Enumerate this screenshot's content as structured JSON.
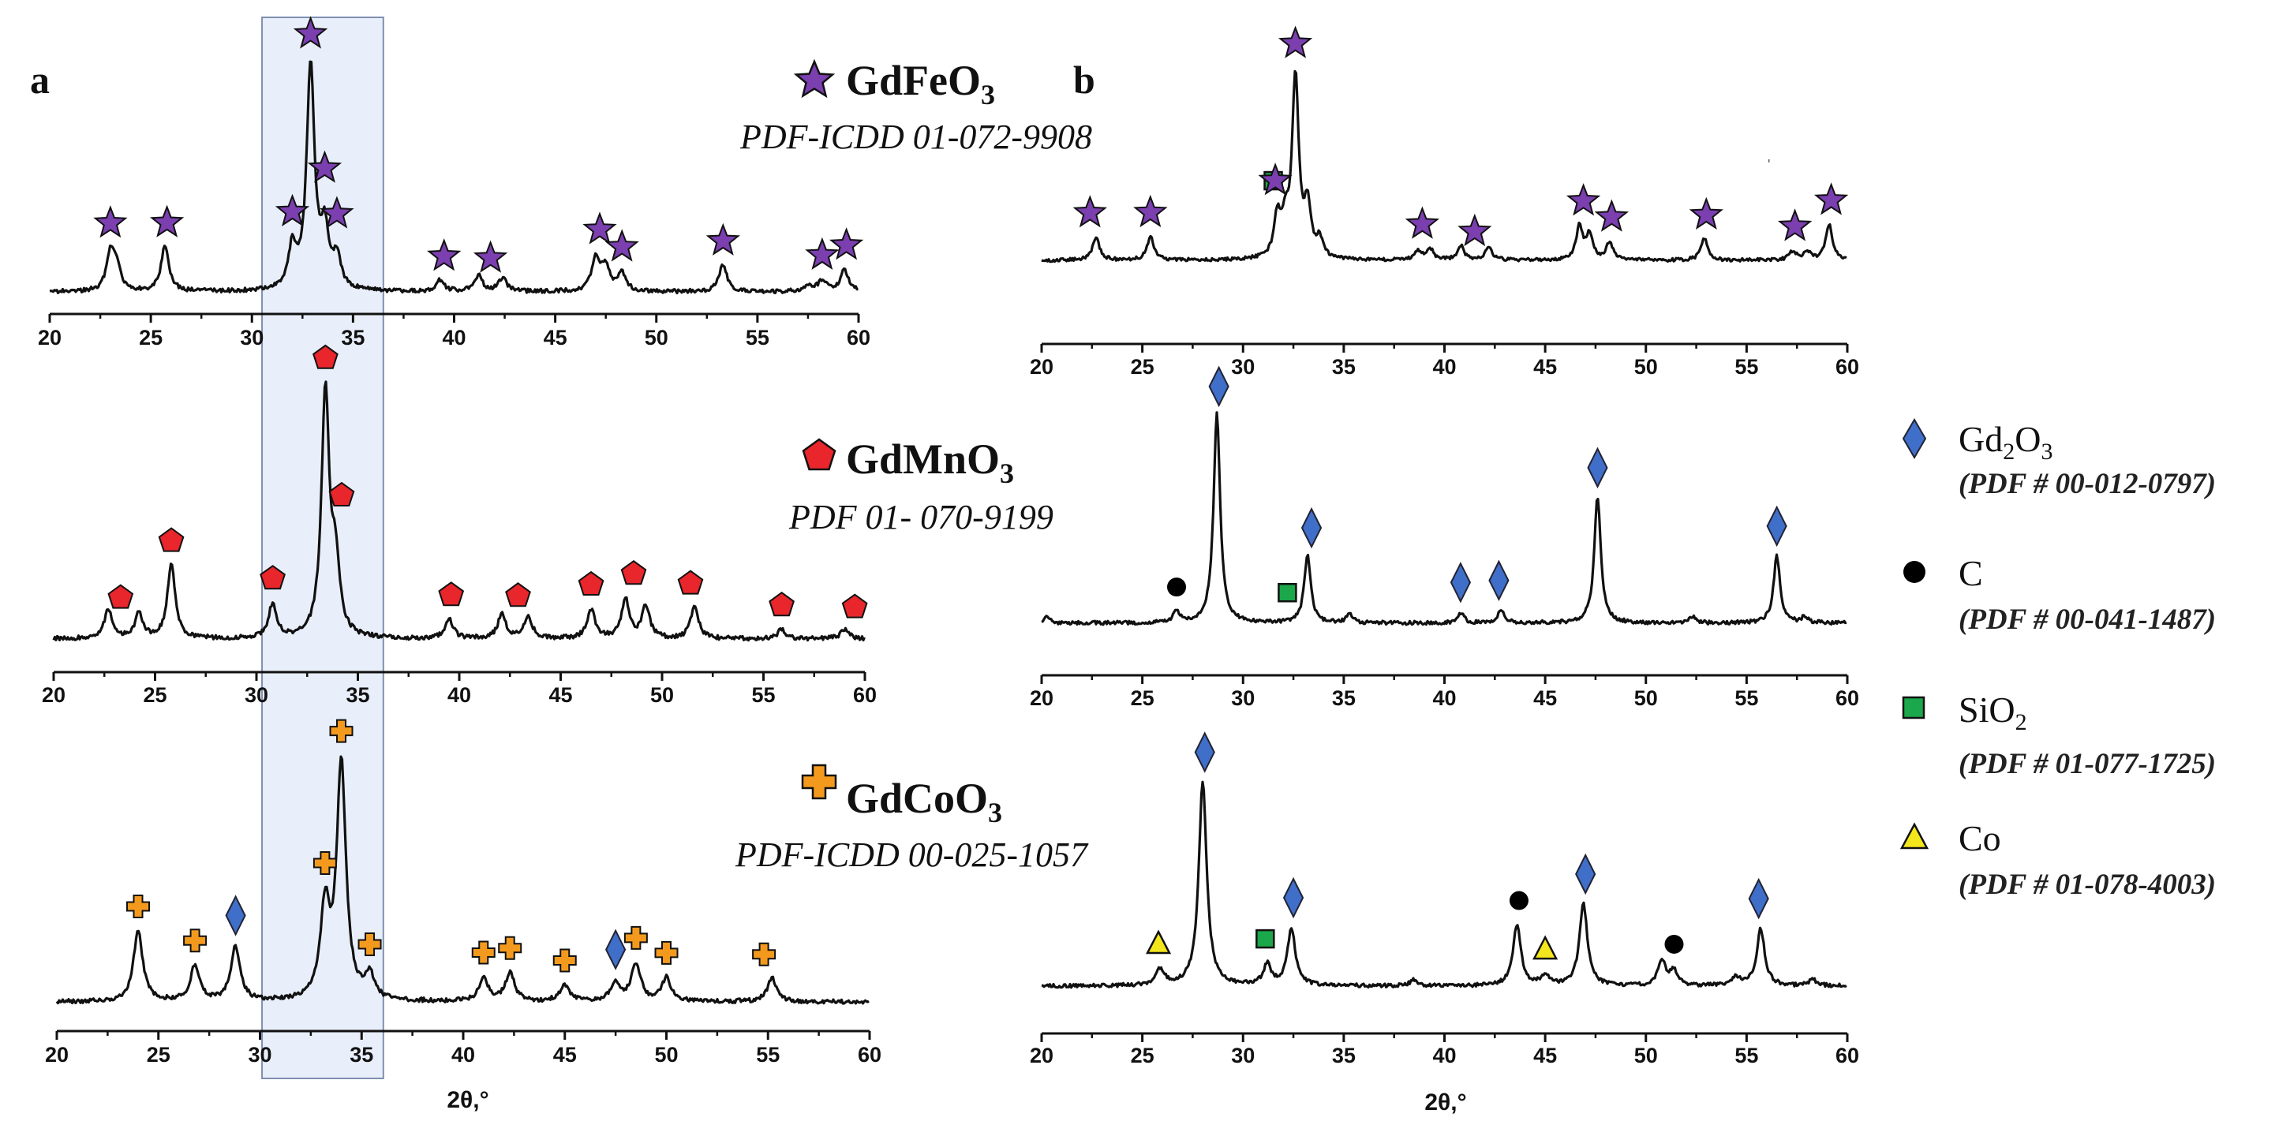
{
  "chart_data": [
    {
      "type": "line",
      "panel": "a",
      "compound_id": "GdFeO3",
      "formula": {
        "base": "GdFeO",
        "sub": "3"
      },
      "pdf_ref": "PDF-ICDD 01-072-9908",
      "marker": "star",
      "xlabel": "",
      "xlim": [
        20,
        60
      ],
      "xticks": [
        20,
        25,
        30,
        35,
        40,
        45,
        50,
        55,
        60
      ],
      "xlabels": [
        "20",
        "25",
        "30",
        "35",
        "40",
        "45",
        "50",
        "55",
        "60"
      ],
      "peaks": [
        {
          "x": 23.0,
          "h": 0.16
        },
        {
          "x": 23.3,
          "h": 0.1
        },
        {
          "x": 25.7,
          "h": 0.2
        },
        {
          "x": 32.0,
          "h": 0.18
        },
        {
          "x": 32.9,
          "h": 1.0
        },
        {
          "x": 33.6,
          "h": 0.25
        },
        {
          "x": 34.2,
          "h": 0.14
        },
        {
          "x": 39.3,
          "h": 0.05
        },
        {
          "x": 41.2,
          "h": 0.07
        },
        {
          "x": 42.4,
          "h": 0.06
        },
        {
          "x": 47.0,
          "h": 0.15
        },
        {
          "x": 47.5,
          "h": 0.11
        },
        {
          "x": 48.3,
          "h": 0.08
        },
        {
          "x": 53.3,
          "h": 0.12
        },
        {
          "x": 57.5,
          "h": 0.03
        },
        {
          "x": 58.2,
          "h": 0.05
        },
        {
          "x": 59.3,
          "h": 0.1
        }
      ],
      "markers": [
        {
          "type": "star",
          "x": 23.0
        },
        {
          "type": "star",
          "x": 25.8
        },
        {
          "type": "star",
          "x": 32.0
        },
        {
          "type": "star",
          "x": 32.9
        },
        {
          "type": "star",
          "x": 33.6
        },
        {
          "type": "star",
          "x": 34.2
        },
        {
          "type": "star",
          "x": 39.5
        },
        {
          "type": "star",
          "x": 41.8
        },
        {
          "type": "star",
          "x": 47.2
        },
        {
          "type": "star",
          "x": 48.3
        },
        {
          "type": "star",
          "x": 53.3
        },
        {
          "type": "star",
          "x": 58.2
        },
        {
          "type": "star",
          "x": 59.4
        }
      ]
    },
    {
      "type": "line",
      "panel": "a",
      "compound_id": "GdMnO3",
      "formula": {
        "base": "GdMnO",
        "sub": "3"
      },
      "pdf_ref": "PDF 01- 070-9199",
      "marker": "pentagon",
      "xlabel": "",
      "xlim": [
        20,
        60
      ],
      "xticks": [
        20,
        25,
        30,
        35,
        40,
        45,
        50,
        55,
        60
      ],
      "xlabels": [
        "20",
        "25",
        "30",
        "35",
        "40",
        "45",
        "50",
        "55",
        "60"
      ],
      "peaks": [
        {
          "x": 22.7,
          "h": 0.12
        },
        {
          "x": 24.2,
          "h": 0.1
        },
        {
          "x": 25.8,
          "h": 0.3
        },
        {
          "x": 30.8,
          "h": 0.14
        },
        {
          "x": 33.4,
          "h": 1.0
        },
        {
          "x": 33.9,
          "h": 0.28
        },
        {
          "x": 39.5,
          "h": 0.08
        },
        {
          "x": 42.1,
          "h": 0.1
        },
        {
          "x": 43.4,
          "h": 0.09
        },
        {
          "x": 46.5,
          "h": 0.12
        },
        {
          "x": 48.2,
          "h": 0.16
        },
        {
          "x": 49.2,
          "h": 0.13
        },
        {
          "x": 51.6,
          "h": 0.13
        },
        {
          "x": 55.9,
          "h": 0.04
        },
        {
          "x": 59.0,
          "h": 0.04
        }
      ],
      "markers": [
        {
          "type": "pentagon",
          "x": 23.3
        },
        {
          "type": "pentagon",
          "x": 25.8
        },
        {
          "type": "pentagon",
          "x": 30.8
        },
        {
          "type": "pentagon",
          "x": 33.4
        },
        {
          "type": "pentagon",
          "x": 34.2
        },
        {
          "type": "pentagon",
          "x": 39.6
        },
        {
          "type": "pentagon",
          "x": 42.9
        },
        {
          "type": "pentagon",
          "x": 46.5
        },
        {
          "type": "pentagon",
          "x": 48.6
        },
        {
          "type": "pentagon",
          "x": 51.4
        },
        {
          "type": "pentagon",
          "x": 55.9
        },
        {
          "type": "pentagon",
          "x": 59.5
        }
      ]
    },
    {
      "type": "line",
      "panel": "a",
      "compound_id": "GdCoO3",
      "formula": {
        "base": "GdCoO",
        "sub": "3"
      },
      "pdf_ref": "PDF-ICDD 00-025-1057",
      "marker": "cross",
      "xlabel": "2θ,°",
      "xlim": [
        20,
        60
      ],
      "xticks": [
        20,
        25,
        30,
        35,
        40,
        45,
        50,
        55,
        60
      ],
      "xlabels": [
        "20",
        "25",
        "30",
        "35",
        "40",
        "45",
        "50",
        "55",
        "60"
      ],
      "peaks": [
        {
          "x": 24.0,
          "h": 0.3
        },
        {
          "x": 26.8,
          "h": 0.15
        },
        {
          "x": 28.8,
          "h": 0.23
        },
        {
          "x": 33.2,
          "h": 0.38
        },
        {
          "x": 34.0,
          "h": 1.0
        },
        {
          "x": 35.4,
          "h": 0.1
        },
        {
          "x": 41.0,
          "h": 0.1
        },
        {
          "x": 42.3,
          "h": 0.12
        },
        {
          "x": 45.0,
          "h": 0.07
        },
        {
          "x": 47.5,
          "h": 0.08
        },
        {
          "x": 48.5,
          "h": 0.16
        },
        {
          "x": 50.0,
          "h": 0.1
        },
        {
          "x": 55.2,
          "h": 0.1
        }
      ],
      "markers": [
        {
          "type": "cross",
          "x": 24.0
        },
        {
          "type": "cross",
          "x": 26.8
        },
        {
          "type": "diamond",
          "x": 28.8
        },
        {
          "type": "cross",
          "x": 33.2
        },
        {
          "type": "cross",
          "x": 34.0
        },
        {
          "type": "cross",
          "x": 35.4
        },
        {
          "type": "cross",
          "x": 41.0
        },
        {
          "type": "cross",
          "x": 42.3
        },
        {
          "type": "cross",
          "x": 45.0
        },
        {
          "type": "diamond",
          "x": 47.5
        },
        {
          "type": "cross",
          "x": 48.5
        },
        {
          "type": "cross",
          "x": 50.0
        },
        {
          "type": "cross",
          "x": 54.8
        }
      ]
    },
    {
      "type": "line",
      "panel": "b",
      "sample": "GdFeO3",
      "xlabel": "",
      "xlim": [
        20,
        60
      ],
      "xticks": [
        20,
        25,
        30,
        35,
        40,
        45,
        50,
        55,
        60
      ],
      "xlabels": [
        "20",
        "25",
        "30",
        "35",
        "40",
        "45",
        "50",
        "55",
        "60"
      ],
      "peaks": [
        {
          "x": 22.7,
          "h": 0.13
        },
        {
          "x": 25.4,
          "h": 0.13
        },
        {
          "x": 31.7,
          "h": 0.22
        },
        {
          "x": 32.1,
          "h": 0.18
        },
        {
          "x": 32.6,
          "h": 1.0
        },
        {
          "x": 33.2,
          "h": 0.28
        },
        {
          "x": 33.8,
          "h": 0.1
        },
        {
          "x": 38.7,
          "h": 0.05
        },
        {
          "x": 39.3,
          "h": 0.06
        },
        {
          "x": 40.8,
          "h": 0.08
        },
        {
          "x": 42.2,
          "h": 0.07
        },
        {
          "x": 46.7,
          "h": 0.18
        },
        {
          "x": 47.2,
          "h": 0.14
        },
        {
          "x": 48.2,
          "h": 0.1
        },
        {
          "x": 52.9,
          "h": 0.12
        },
        {
          "x": 57.3,
          "h": 0.05
        },
        {
          "x": 58.0,
          "h": 0.05
        },
        {
          "x": 59.1,
          "h": 0.2
        }
      ],
      "markers": [
        {
          "type": "star",
          "x": 22.4
        },
        {
          "type": "star",
          "x": 25.4
        },
        {
          "type": "square",
          "x": 31.5
        },
        {
          "type": "star",
          "x": 31.6
        },
        {
          "type": "star",
          "x": 32.6
        },
        {
          "type": "star",
          "x": 38.9
        },
        {
          "type": "star",
          "x": 41.5
        },
        {
          "type": "star",
          "x": 46.9
        },
        {
          "type": "star",
          "x": 48.3
        },
        {
          "type": "star",
          "x": 53.0
        },
        {
          "type": "star",
          "x": 57.4
        },
        {
          "type": "star",
          "x": 59.2
        }
      ]
    },
    {
      "type": "line",
      "panel": "b",
      "sample": "GdMnO3",
      "xlabel": "",
      "xlim": [
        20,
        60
      ],
      "xticks": [
        20,
        25,
        30,
        35,
        40,
        45,
        50,
        55,
        60
      ],
      "xlabels": [
        "20",
        "25",
        "30",
        "35",
        "40",
        "45",
        "50",
        "55",
        "60"
      ],
      "peaks": [
        {
          "x": 20.3,
          "h": 0.03
        },
        {
          "x": 26.7,
          "h": 0.05
        },
        {
          "x": 28.7,
          "h": 1.0
        },
        {
          "x": 33.2,
          "h": 0.32
        },
        {
          "x": 35.3,
          "h": 0.04
        },
        {
          "x": 40.8,
          "h": 0.05
        },
        {
          "x": 42.8,
          "h": 0.06
        },
        {
          "x": 47.6,
          "h": 0.6
        },
        {
          "x": 52.3,
          "h": 0.03
        },
        {
          "x": 56.5,
          "h": 0.32
        },
        {
          "x": 57.9,
          "h": 0.03
        }
      ],
      "markers": [
        {
          "type": "diamond",
          "x": 28.8
        },
        {
          "type": "circle",
          "x": 26.7
        },
        {
          "type": "square",
          "x": 32.2
        },
        {
          "type": "diamond",
          "x": 33.4
        },
        {
          "type": "diamond",
          "x": 40.8
        },
        {
          "type": "diamond",
          "x": 42.7
        },
        {
          "type": "diamond",
          "x": 47.6
        },
        {
          "type": "diamond",
          "x": 56.5
        }
      ]
    },
    {
      "type": "line",
      "panel": "b",
      "sample": "GdCoO3",
      "xlabel": "2θ,°",
      "xlim": [
        20,
        60
      ],
      "xticks": [
        20,
        25,
        30,
        35,
        40,
        45,
        50,
        55,
        60
      ],
      "xlabels": [
        "20",
        "25",
        "30",
        "35",
        "40",
        "45",
        "50",
        "55",
        "60"
      ],
      "peaks": [
        {
          "x": 25.9,
          "h": 0.08
        },
        {
          "x": 28.0,
          "h": 1.0
        },
        {
          "x": 31.2,
          "h": 0.1
        },
        {
          "x": 32.4,
          "h": 0.28
        },
        {
          "x": 38.5,
          "h": 0.03
        },
        {
          "x": 43.6,
          "h": 0.3
        },
        {
          "x": 45.0,
          "h": 0.05
        },
        {
          "x": 46.9,
          "h": 0.4
        },
        {
          "x": 50.8,
          "h": 0.12
        },
        {
          "x": 51.4,
          "h": 0.07
        },
        {
          "x": 54.5,
          "h": 0.04
        },
        {
          "x": 55.7,
          "h": 0.28
        },
        {
          "x": 58.3,
          "h": 0.03
        }
      ],
      "markers": [
        {
          "type": "diamond",
          "x": 28.1
        },
        {
          "type": "triangle",
          "x": 25.8
        },
        {
          "type": "square",
          "x": 31.1
        },
        {
          "type": "diamond",
          "x": 32.5
        },
        {
          "type": "circle",
          "x": 43.7
        },
        {
          "type": "triangle",
          "x": 45.0
        },
        {
          "type": "diamond",
          "x": 47.0
        },
        {
          "type": "circle",
          "x": 51.4
        },
        {
          "type": "diamond",
          "x": 55.6
        }
      ]
    }
  ],
  "panel_labels": {
    "a": "a",
    "b": "b"
  },
  "stray_mark": "'",
  "legend": [
    {
      "symbol": "diamond",
      "name_base": "Gd",
      "name_sub1": "2",
      "name_mid": "O",
      "name_sub2": "3",
      "ref": "(PDF # 00-012-0797)"
    },
    {
      "symbol": "circle",
      "name_base": "C",
      "name_sub1": "",
      "name_mid": "",
      "name_sub2": "",
      "ref": "(PDF # 00-041-1487)"
    },
    {
      "symbol": "square",
      "name_base": "SiO",
      "name_sub1": "2",
      "name_mid": "",
      "name_sub2": "",
      "ref": "(PDF # 01-077-1725)"
    },
    {
      "symbol": "triangle",
      "name_base": "Co",
      "name_sub1": "",
      "name_mid": "",
      "name_sub2": "",
      "ref": "(PDF # 01-078-4003)"
    }
  ],
  "highlight_range": [
    30.5,
    36.5
  ],
  "colors": {
    "line": "#111111",
    "star": "#7b3fb0",
    "pentagon": "#e8262b",
    "cross": "#f39a1e",
    "diamond": "#3f6fc8",
    "circle": "#000000",
    "square": "#1aa84a",
    "triangle": "#f4e61c",
    "highlight": "#dbe4f6"
  }
}
